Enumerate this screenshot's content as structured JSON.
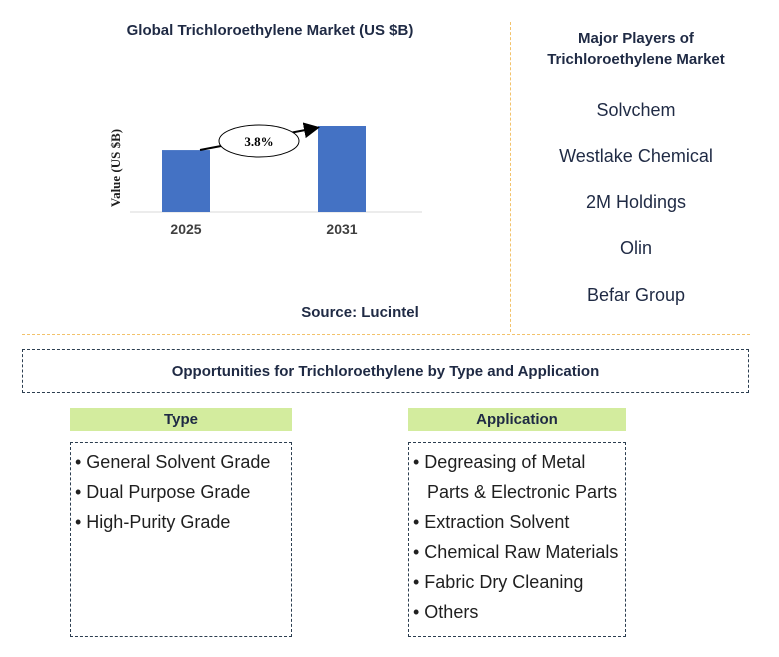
{
  "chart_data": {
    "type": "bar",
    "title": "Global Trichloroethylene Market (US $B)",
    "ylabel": "Value (US $B)",
    "categories": [
      "2025",
      "2031"
    ],
    "values": [
      0.72,
      1.0
    ],
    "annotation": "3.8%",
    "colors": {
      "bar": "#4472c4"
    }
  },
  "source": "Source: Lucintel",
  "players": {
    "title_line1": "Major Players of",
    "title_line2": "Trichloroethylene Market",
    "items": [
      "Solvchem",
      "Westlake Chemical",
      "2M Holdings",
      "Olin",
      "Befar Group"
    ]
  },
  "opportunities": {
    "title": "Opportunities for Trichloroethylene by Type and Application"
  },
  "type_segment": {
    "header": "Type",
    "items": [
      "• General Solvent Grade",
      "• Dual Purpose Grade",
      "• High-Purity Grade"
    ]
  },
  "application_segment": {
    "header": "Application",
    "items": [
      "• Degreasing of Metal",
      "Parts & Electronic Parts",
      "• Extraction Solvent",
      "• Chemical Raw Materials",
      "• Fabric Dry Cleaning",
      "• Others"
    ]
  },
  "colors": {
    "header_bg": "#d3ec9e",
    "divider": "#f2c26b",
    "text": "#1f2a44"
  }
}
